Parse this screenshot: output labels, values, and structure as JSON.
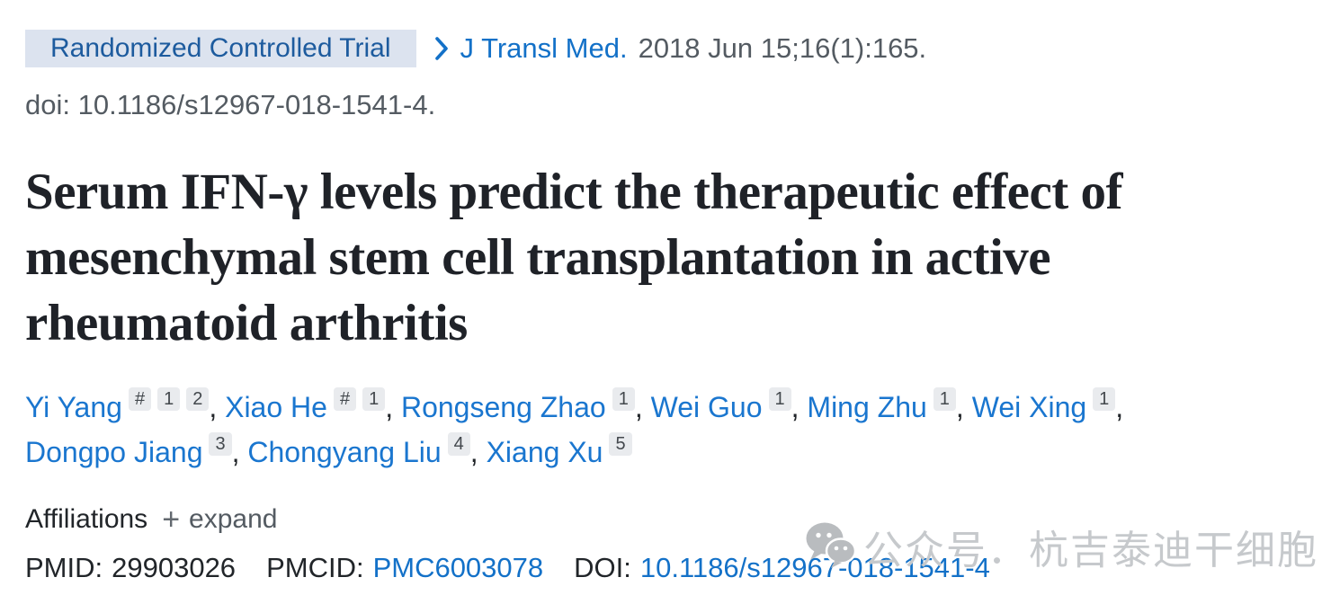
{
  "colors": {
    "link_blue": "#1371c8",
    "author_link_blue": "#1a76cf",
    "badge_bg": "#dce3ef",
    "badge_text": "#1d5b9e",
    "gray_text": "#545b62",
    "title_text": "#1f2228",
    "sup_box_bg": "#e9ebee",
    "watermark_gray": "#c6c9cc"
  },
  "publication_type_badge": {
    "label": "Randomized Controlled Trial"
  },
  "citation": {
    "chevron_icon": "chevron-right",
    "journal_link": "J Transl Med.",
    "citation_details": "2018 Jun 15;16(1):165.",
    "doi_line": "doi: 10.1186/s12967-018-1541-4."
  },
  "title": {
    "full": "Serum IFN-γ levels predict the therapeutic effect of mesenchymal stem cell transplantation in active rheumatoid arthritis",
    "lines": [
      "Serum IFN-γ levels predict the therapeutic effect of",
      "mesenchymal stem cell transplantation in active",
      "rheumatoid arthritis"
    ]
  },
  "authors": {
    "separator": ", ",
    "list": [
      {
        "name": "Yi Yang",
        "superscripts": [
          "#",
          "1",
          "2"
        ]
      },
      {
        "name": "Xiao He",
        "superscripts": [
          "#",
          "1"
        ]
      },
      {
        "name": "Rongseng Zhao",
        "superscripts": [
          "1"
        ]
      },
      {
        "name": "Wei Guo",
        "superscripts": [
          "1"
        ]
      },
      {
        "name": "Ming Zhu",
        "superscripts": [
          "1"
        ]
      },
      {
        "name": "Wei Xing",
        "superscripts": [
          "1"
        ]
      },
      {
        "name": "Dongpo Jiang",
        "superscripts": [
          "3"
        ]
      },
      {
        "name": "Chongyang Liu",
        "superscripts": [
          "4"
        ]
      },
      {
        "name": "Xiang Xu",
        "superscripts": [
          "5"
        ]
      }
    ]
  },
  "affiliations": {
    "label": "Affiliations",
    "expand_icon": "+",
    "expand_label": "expand"
  },
  "identifiers": {
    "pmid_label": "PMID:",
    "pmid_value": "29903026",
    "pmcid_label": "PMCID:",
    "pmcid_link": "PMC6003078",
    "doi_label": "DOI:",
    "doi_link": "10.1186/s12967-018-1541-4"
  },
  "watermark": {
    "icon": "wechat-icon",
    "text": "公众号．杭吉泰迪干细胞"
  }
}
